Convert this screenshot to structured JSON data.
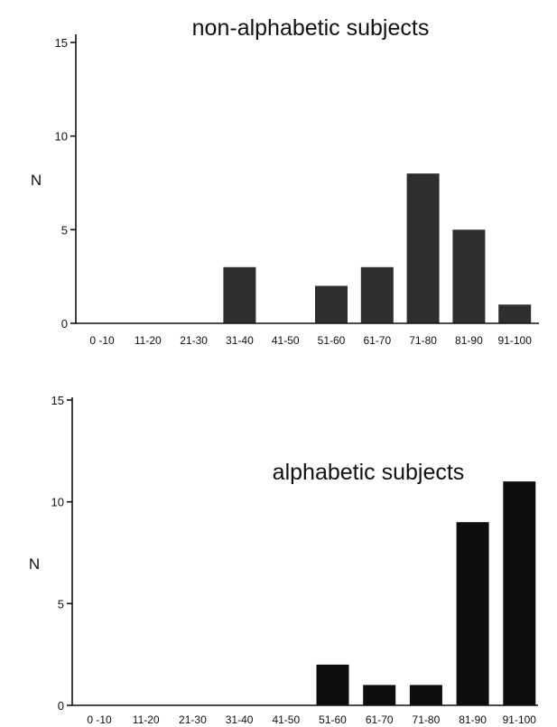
{
  "chart_data": [
    {
      "type": "bar",
      "title": "non-alphabetic subjects",
      "ylabel": "N",
      "xlabel": "",
      "categories": [
        "0 -10",
        "11-20",
        "21-30",
        "31-40",
        "41-50",
        "51-60",
        "61-70",
        "71-80",
        "81-90",
        "91-100"
      ],
      "values": [
        0,
        0,
        0,
        3,
        0,
        2,
        3,
        8,
        5,
        1
      ],
      "ylim": [
        0,
        15
      ],
      "yticks": [
        "0",
        "5",
        "10",
        "15"
      ],
      "bar_color": "#2e2e2e",
      "grid": false,
      "legend": "none"
    },
    {
      "type": "bar",
      "title": "alphabetic subjects",
      "ylabel": "N",
      "xlabel": "",
      "categories": [
        "0 -10",
        "11-20",
        "21-30",
        "31-40",
        "41-50",
        "51-60",
        "61-70",
        "71-80",
        "81-90",
        "91-100"
      ],
      "values": [
        0,
        0,
        0,
        0,
        0,
        2,
        1,
        1,
        9,
        11
      ],
      "ylim": [
        0,
        15
      ],
      "yticks": [
        "0",
        "5",
        "10",
        "15"
      ],
      "bar_color": "#0d0d0d",
      "grid": false,
      "legend": "none"
    }
  ]
}
